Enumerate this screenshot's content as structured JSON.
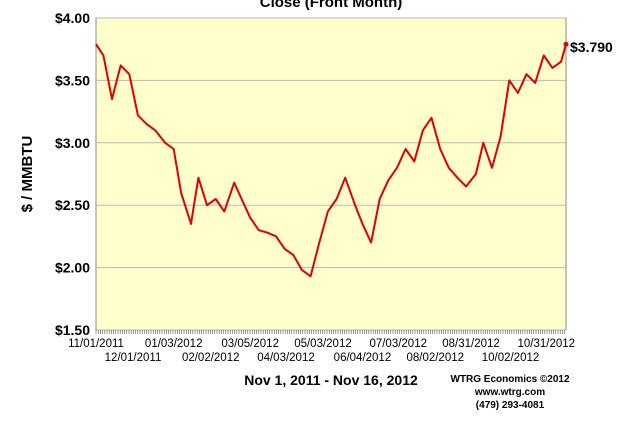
{
  "chart_data": {
    "type": "line",
    "title": "Close (Front Month)",
    "ylabel": "$ / MMBTU",
    "xlabel": "Nov 1, 2011 - Nov 16, 2012",
    "ylim": [
      1.5,
      4.0
    ],
    "yticks": [
      "$1.50",
      "$2.00",
      "$2.50",
      "$3.00",
      "$3.50",
      "$4.00"
    ],
    "xticks_top": [
      "11/01/2011",
      "01/03/2012",
      "03/05/2012",
      "05/03/2012",
      "07/03/2012",
      "08/31/2012",
      "10/31/2012"
    ],
    "xticks_bottom": [
      "12/01/2011",
      "02/02/2012",
      "04/03/2012",
      "06/04/2012",
      "08/02/2012",
      "10/02/2012"
    ],
    "last_value_label": "$3.790",
    "grid": true,
    "colors": {
      "line": "#dd0000",
      "plot_bg": "#ffffcc",
      "last_label": "#000000"
    },
    "series": [
      {
        "name": "",
        "x": [
          "2011-11-01",
          "2011-11-07",
          "2011-11-14",
          "2011-11-21",
          "2011-11-28",
          "2011-12-05",
          "2011-12-12",
          "2011-12-19",
          "2011-12-27",
          "2012-01-03",
          "2012-01-09",
          "2012-01-17",
          "2012-01-23",
          "2012-01-30",
          "2012-02-06",
          "2012-02-13",
          "2012-02-21",
          "2012-02-27",
          "2012-03-05",
          "2012-03-12",
          "2012-03-19",
          "2012-03-26",
          "2012-04-02",
          "2012-04-09",
          "2012-04-16",
          "2012-04-23",
          "2012-04-30",
          "2012-05-07",
          "2012-05-14",
          "2012-05-21",
          "2012-05-29",
          "2012-06-04",
          "2012-06-11",
          "2012-06-18",
          "2012-06-25",
          "2012-07-02",
          "2012-07-09",
          "2012-07-16",
          "2012-07-23",
          "2012-07-30",
          "2012-08-06",
          "2012-08-13",
          "2012-08-20",
          "2012-08-27",
          "2012-09-04",
          "2012-09-10",
          "2012-09-17",
          "2012-09-24",
          "2012-10-01",
          "2012-10-08",
          "2012-10-15",
          "2012-10-22",
          "2012-10-29",
          "2012-11-05",
          "2012-11-12",
          "2012-11-16"
        ],
        "values": [
          3.79,
          3.7,
          3.35,
          3.62,
          3.55,
          3.22,
          3.15,
          3.1,
          3.0,
          2.95,
          2.6,
          2.35,
          2.72,
          2.5,
          2.55,
          2.45,
          2.68,
          2.55,
          2.4,
          2.3,
          2.28,
          2.25,
          2.15,
          2.1,
          1.98,
          1.93,
          2.2,
          2.45,
          2.55,
          2.72,
          2.5,
          2.35,
          2.2,
          2.55,
          2.7,
          2.8,
          2.95,
          2.85,
          3.1,
          3.2,
          2.95,
          2.8,
          2.72,
          2.65,
          2.75,
          3.0,
          2.8,
          3.05,
          3.5,
          3.4,
          3.55,
          3.48,
          3.7,
          3.6,
          3.65,
          3.79
        ]
      }
    ],
    "credits": [
      "WTRG Economics  ©2012",
      "www.wtrg.com",
      "(479) 293-4081"
    ]
  }
}
